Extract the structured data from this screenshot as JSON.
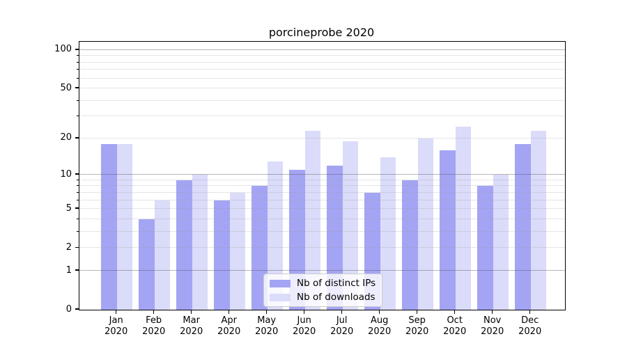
{
  "title": "porcineprobe 2020",
  "chart_data": {
    "type": "bar",
    "title": "porcineprobe 2020",
    "xlabel": "",
    "ylabel": "",
    "scale": "log1p",
    "ylim": [
      0,
      116
    ],
    "grid_on": true,
    "legend_position": "lower center",
    "categories": [
      "Jan 2020",
      "Feb 2020",
      "Mar 2020",
      "Apr 2020",
      "May 2020",
      "Jun 2020",
      "Jul 2020",
      "Aug 2020",
      "Sep 2020",
      "Oct 2020",
      "Nov 2020",
      "Dec 2020"
    ],
    "x_tick_months": [
      "Jan",
      "Feb",
      "Mar",
      "Apr",
      "May",
      "Jun",
      "Jul",
      "Aug",
      "Sep",
      "Oct",
      "Nov",
      "Dec"
    ],
    "x_tick_year": "2020",
    "series": [
      {
        "name": "Nb of distinct IPs",
        "color": "#a4a4f4",
        "values": [
          18,
          4,
          9,
          6,
          8,
          11,
          12,
          7,
          9,
          16,
          8,
          18
        ]
      },
      {
        "name": "Nb of downloads",
        "color": "#dbdbfa",
        "values": [
          18,
          6,
          10,
          7,
          13,
          23,
          19,
          14,
          20,
          25,
          10,
          23
        ]
      }
    ],
    "yticks_major": [
      0,
      1,
      2,
      5,
      10,
      20,
      50,
      100
    ],
    "grid_major": [
      1,
      10,
      100
    ],
    "grid_minor": [
      2,
      3,
      4,
      5,
      6,
      7,
      8,
      9,
      20,
      30,
      40,
      50,
      60,
      70,
      80,
      90
    ],
    "yticks_minor_marks": [
      3,
      4,
      6,
      7,
      8,
      9,
      30,
      40,
      60,
      70,
      80,
      90
    ]
  }
}
